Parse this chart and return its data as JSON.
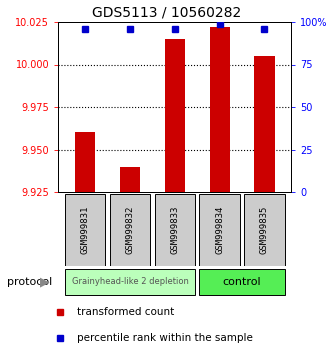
{
  "title": "GDS5113 / 10560282",
  "samples": [
    "GSM999831",
    "GSM999832",
    "GSM999833",
    "GSM999834",
    "GSM999835"
  ],
  "bar_values": [
    9.96,
    9.94,
    10.015,
    10.022,
    10.005
  ],
  "bar_bottom": 9.925,
  "bar_color": "#cc0000",
  "percentile_values": [
    96,
    96,
    96,
    99,
    96
  ],
  "percentile_color": "#0000cc",
  "ylim_left": [
    9.925,
    10.025
  ],
  "ylim_right": [
    0,
    100
  ],
  "yticks_left": [
    9.925,
    9.95,
    9.975,
    10.0,
    10.025
  ],
  "yticks_right": [
    0,
    25,
    50,
    75,
    100
  ],
  "ytick_labels_right": [
    "0",
    "25",
    "50",
    "75",
    "100%"
  ],
  "grid_values": [
    9.95,
    9.975,
    10.0
  ],
  "group1_samples": [
    0,
    1,
    2
  ],
  "group2_samples": [
    3,
    4
  ],
  "group1_label": "Grainyhead-like 2 depletion",
  "group2_label": "control",
  "group1_color": "#bbffbb",
  "group2_color": "#55ee55",
  "protocol_label": "protocol",
  "legend1_label": "transformed count",
  "legend2_label": "percentile rank within the sample",
  "bar_width": 0.45,
  "tick_label_size": 7
}
